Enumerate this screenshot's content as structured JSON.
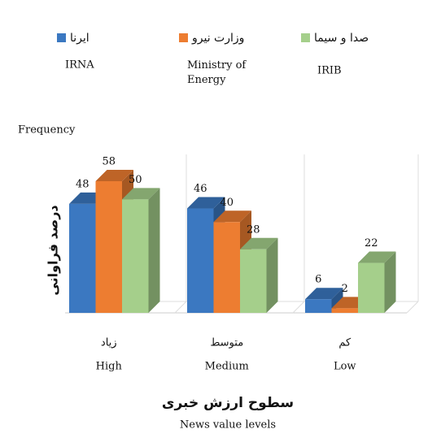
{
  "chart_data": {
    "type": "bar3d",
    "y_label": "Frequency",
    "y_label_fa": "درصد فراوانی",
    "x_label_fa": "سطوح ارزش خبری",
    "x_label": "News value levels",
    "categories": [
      "زیاد",
      "متوسط",
      "کم"
    ],
    "categories_en": [
      "High",
      "Medium",
      "Low"
    ],
    "series": [
      {
        "name": "ایرنا",
        "name_en": "IRNA",
        "color": "#3b78c1",
        "values": [
          48,
          46,
          6
        ]
      },
      {
        "name": "وزارت نیرو",
        "name_en": "Ministry of Energy",
        "color": "#ed7d31",
        "values": [
          58,
          40,
          2
        ]
      },
      {
        "name": "صدا و سیما",
        "name_en": "IRIB",
        "color": "#a5cf8b",
        "values": [
          50,
          28,
          22
        ]
      }
    ]
  }
}
